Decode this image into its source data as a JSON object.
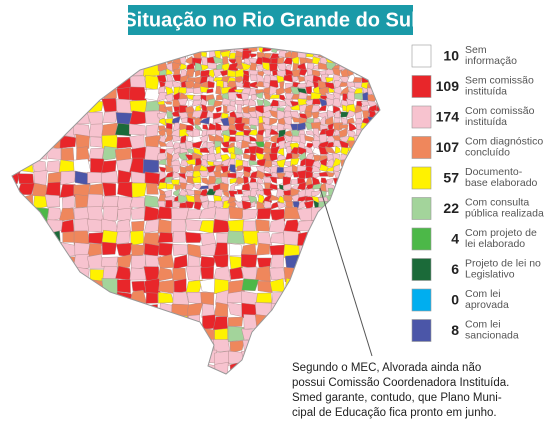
{
  "title": "Situação no Rio Grande do Sul",
  "legend": [
    {
      "color": "#ffffff",
      "count": 10,
      "label": [
        "Sem",
        "informação"
      ]
    },
    {
      "color": "#e8262a",
      "count": 109,
      "label": [
        "Sem comissão",
        "instituída"
      ]
    },
    {
      "color": "#f7c3cf",
      "count": 174,
      "label": [
        "Com comissão",
        "instituída"
      ]
    },
    {
      "color": "#ef875c",
      "count": 107,
      "label": [
        "Com diagnóstico",
        "concluído"
      ]
    },
    {
      "color": "#fff200",
      "count": 57,
      "label": [
        "Documento-",
        "base elaborado"
      ]
    },
    {
      "color": "#a3d49b",
      "count": 22,
      "label": [
        "Com consulta",
        "pública realizada"
      ]
    },
    {
      "color": "#4cb848",
      "count": 4,
      "label": [
        "Com projeto de",
        "lei elaborado"
      ]
    },
    {
      "color": "#1b6a39",
      "count": 6,
      "label": [
        "Projeto de lei no",
        "Legislativo"
      ]
    },
    {
      "color": "#00aeef",
      "count": 0,
      "label": [
        "Com lei",
        "aprovada"
      ]
    },
    {
      "color": "#4b56a8",
      "count": 8,
      "label": [
        "Com lei",
        "sancionada"
      ]
    }
  ],
  "note": [
    "Segundo o MEC, Alvorada ainda não",
    "possui Comissão Coordenadora Instituída.",
    "Smed garante, contudo, que Plano Muni-",
    "cipal de Educação fica pronto em junho."
  ]
}
